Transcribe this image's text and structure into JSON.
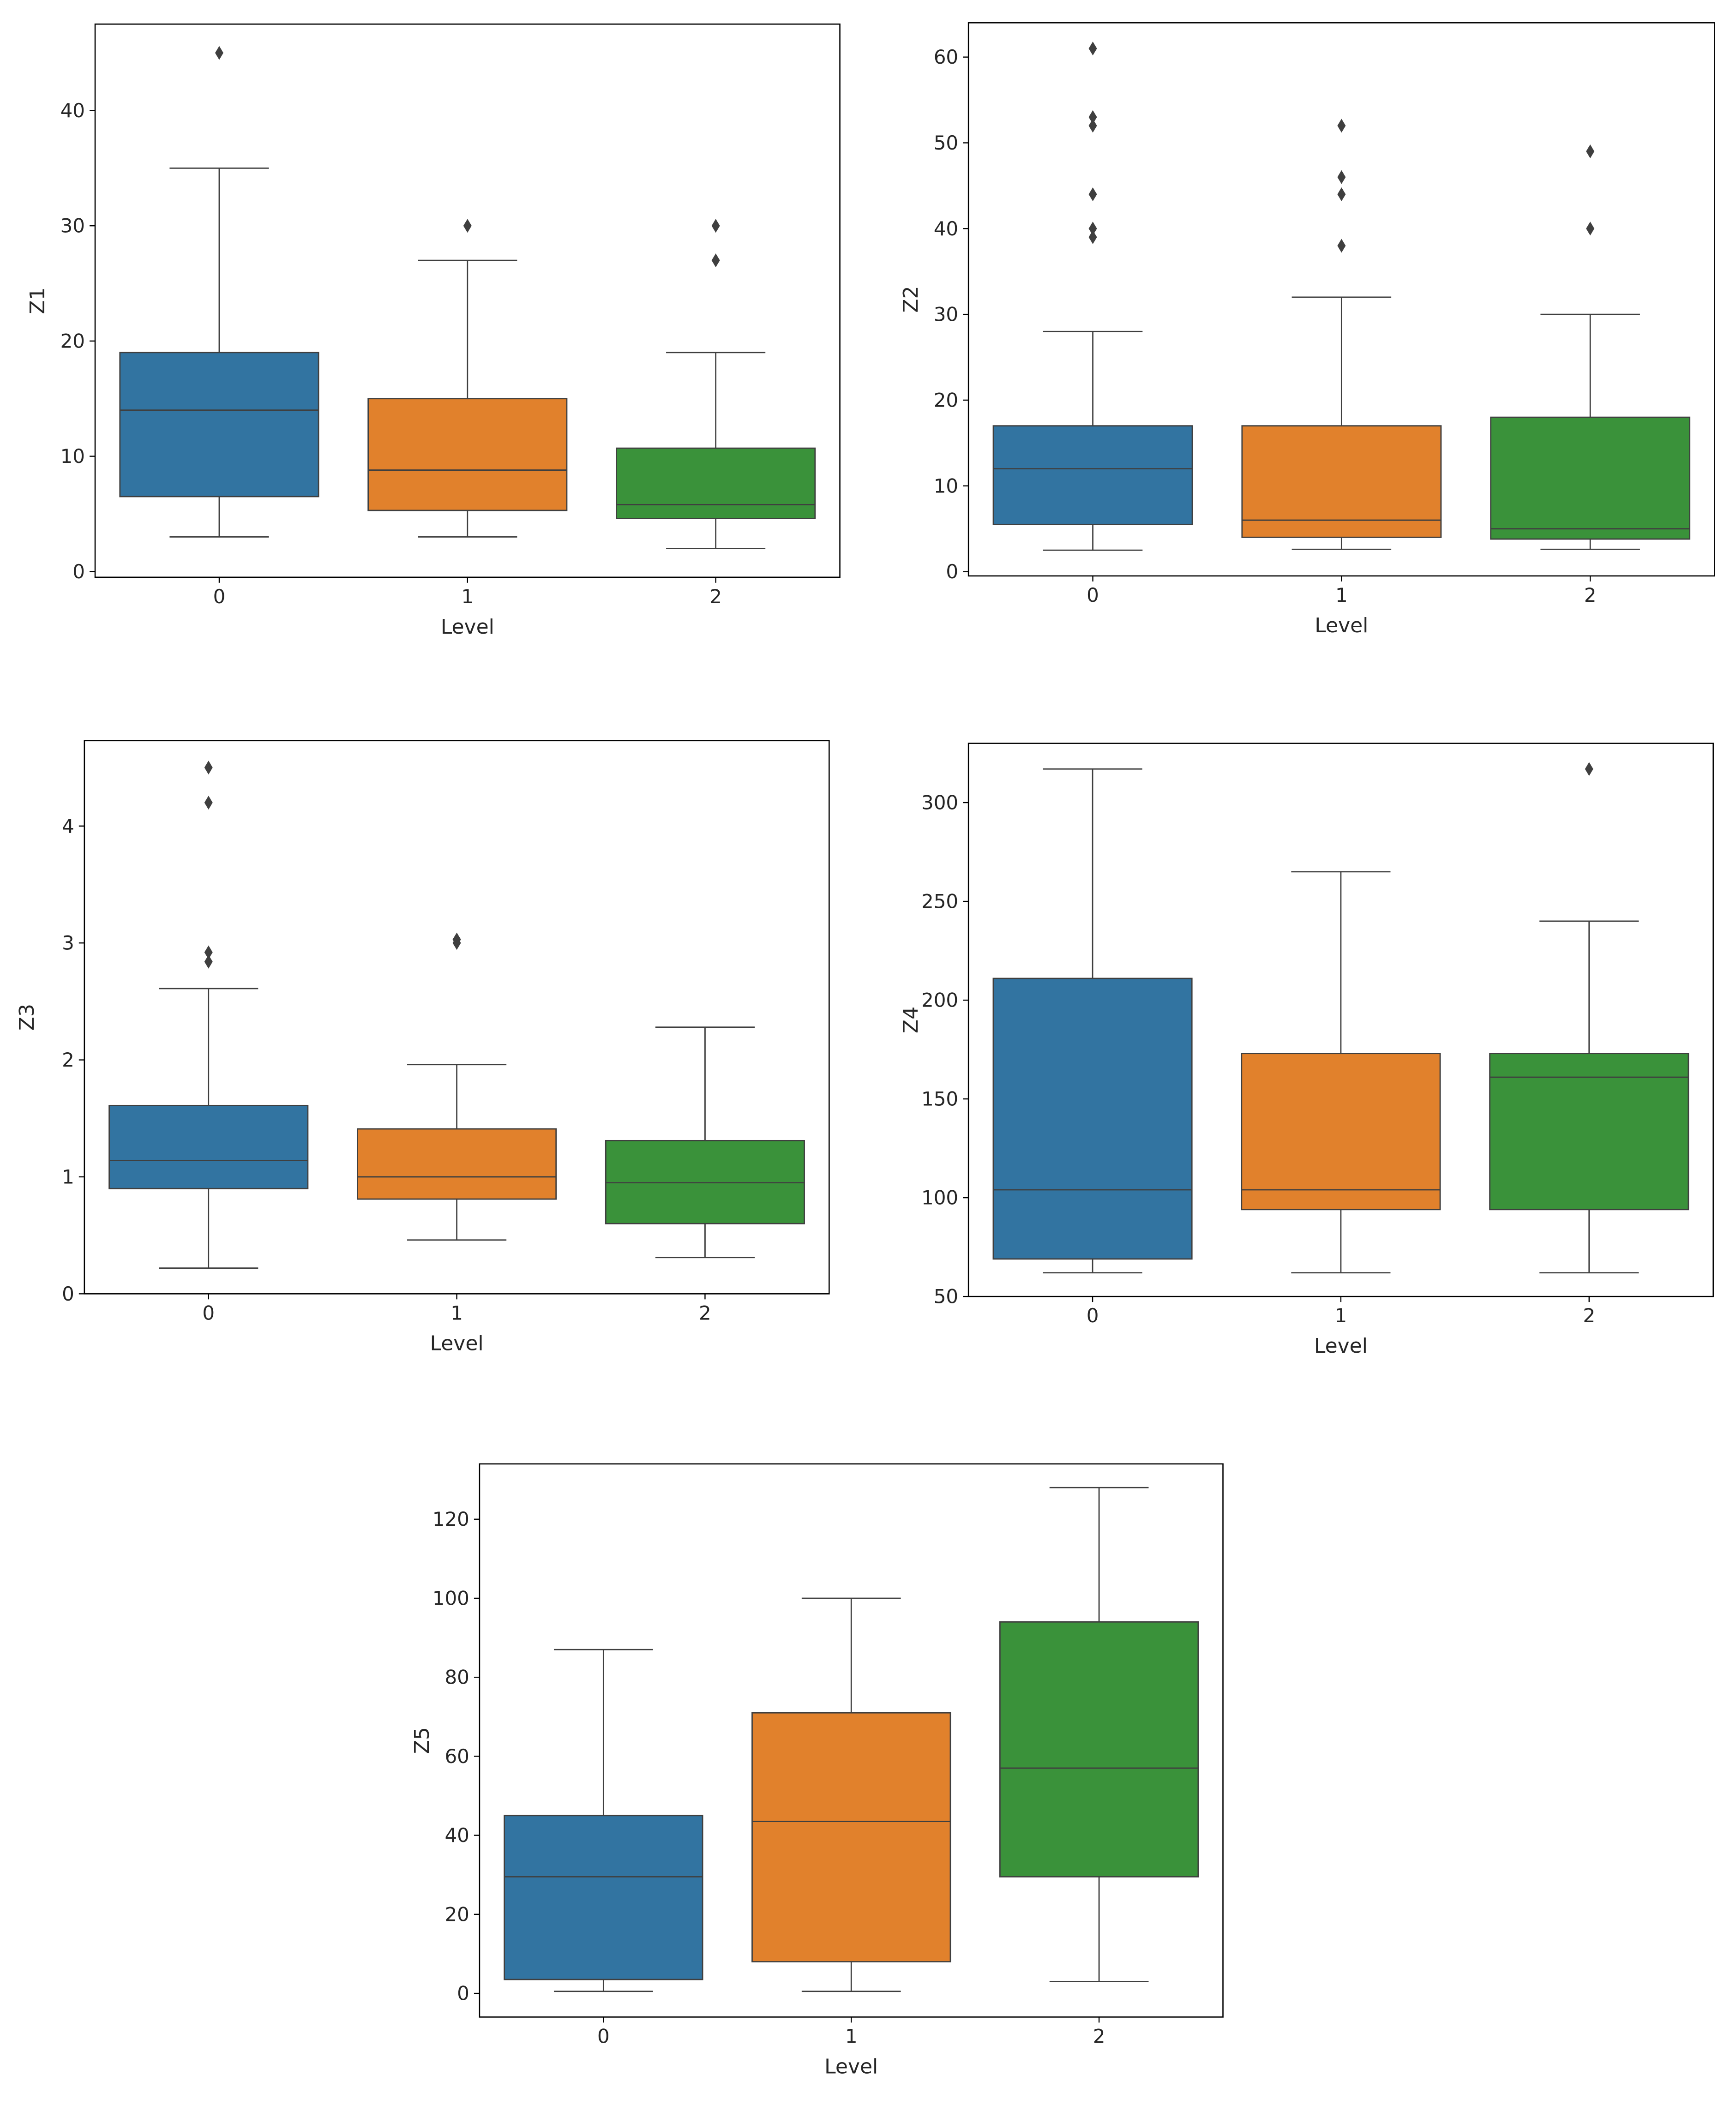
{
  "chart_data": [
    {
      "type": "box",
      "xlabel": "Level",
      "ylabel": "Z1",
      "categories": [
        "0",
        "1",
        "2"
      ],
      "ylim": [
        -0.5,
        47.5
      ],
      "yticks": [
        0,
        10,
        20,
        30,
        40
      ],
      "yticklabels": [
        "0",
        "10",
        "20",
        "30",
        "40"
      ],
      "boxes": [
        {
          "category": "0",
          "whisker_low": 3,
          "q1": 6.5,
          "median": 14,
          "q3": 19,
          "whisker_high": 35,
          "outliers": [
            45
          ]
        },
        {
          "category": "1",
          "whisker_low": 3,
          "q1": 5.3,
          "median": 8.8,
          "q3": 15,
          "whisker_high": 27,
          "outliers": [
            30
          ]
        },
        {
          "category": "2",
          "whisker_low": 2,
          "q1": 4.6,
          "median": 5.8,
          "q3": 10.7,
          "whisker_high": 19,
          "outliers": [
            27,
            30
          ]
        }
      ]
    },
    {
      "type": "box",
      "xlabel": "Level",
      "ylabel": "Z2",
      "categories": [
        "0",
        "1",
        "2"
      ],
      "ylim": [
        -0.5,
        64
      ],
      "yticks": [
        0,
        10,
        20,
        30,
        40,
        50,
        60
      ],
      "yticklabels": [
        "0",
        "10",
        "20",
        "30",
        "40",
        "50",
        "60"
      ],
      "boxes": [
        {
          "category": "0",
          "whisker_low": 2.5,
          "q1": 5.5,
          "median": 12,
          "q3": 17,
          "whisker_high": 28,
          "outliers": [
            39,
            40,
            44,
            52,
            53,
            61
          ]
        },
        {
          "category": "1",
          "whisker_low": 2.6,
          "q1": 4,
          "median": 6,
          "q3": 17,
          "whisker_high": 32,
          "outliers": [
            38,
            44,
            46,
            52
          ]
        },
        {
          "category": "2",
          "whisker_low": 2.6,
          "q1": 3.8,
          "median": 5,
          "q3": 18,
          "whisker_high": 30,
          "outliers": [
            40,
            49
          ]
        }
      ]
    },
    {
      "type": "box",
      "xlabel": "Level",
      "ylabel": "Z3",
      "categories": [
        "0",
        "1",
        "2"
      ],
      "ylim": [
        0,
        4.73
      ],
      "yticks": [
        0,
        1,
        2,
        3,
        4
      ],
      "yticklabels": [
        "0",
        "1",
        "2",
        "3",
        "4"
      ],
      "boxes": [
        {
          "category": "0",
          "whisker_low": 0.22,
          "q1": 0.9,
          "median": 1.14,
          "q3": 1.61,
          "whisker_high": 2.61,
          "outliers": [
            2.84,
            2.92,
            4.2,
            4.5
          ]
        },
        {
          "category": "1",
          "whisker_low": 0.46,
          "q1": 0.81,
          "median": 1.0,
          "q3": 1.41,
          "whisker_high": 1.96,
          "outliers": [
            3.0,
            3.03
          ]
        },
        {
          "category": "2",
          "whisker_low": 0.31,
          "q1": 0.6,
          "median": 0.95,
          "q3": 1.31,
          "whisker_high": 2.28,
          "outliers": []
        }
      ]
    },
    {
      "type": "box",
      "xlabel": "Level",
      "ylabel": "Z4",
      "categories": [
        "0",
        "1",
        "2"
      ],
      "ylim": [
        50,
        330
      ],
      "yticks": [
        50,
        100,
        150,
        200,
        250,
        300
      ],
      "yticklabels": [
        "50",
        "100",
        "150",
        "200",
        "250",
        "300"
      ],
      "boxes": [
        {
          "category": "0",
          "whisker_low": 62,
          "q1": 69,
          "median": 104,
          "q3": 211,
          "whisker_high": 317,
          "outliers": []
        },
        {
          "category": "1",
          "whisker_low": 62,
          "q1": 94,
          "median": 104,
          "q3": 173,
          "whisker_high": 265,
          "outliers": []
        },
        {
          "category": "2",
          "whisker_low": 62,
          "q1": 94,
          "median": 161,
          "q3": 173,
          "whisker_high": 240,
          "outliers": [
            317
          ]
        }
      ]
    },
    {
      "type": "box",
      "xlabel": "Level",
      "ylabel": "Z5",
      "categories": [
        "0",
        "1",
        "2"
      ],
      "ylim": [
        -6,
        134
      ],
      "yticks": [
        0,
        20,
        40,
        60,
        80,
        100,
        120
      ],
      "yticklabels": [
        "0",
        "20",
        "40",
        "60",
        "80",
        "100",
        "120"
      ],
      "boxes": [
        {
          "category": "0",
          "whisker_low": 0.5,
          "q1": 3.5,
          "median": 29.5,
          "q3": 45,
          "whisker_high": 87,
          "outliers": []
        },
        {
          "category": "1",
          "whisker_low": 0.5,
          "q1": 8,
          "median": 43.5,
          "q3": 71,
          "whisker_high": 100,
          "outliers": []
        },
        {
          "category": "2",
          "whisker_low": 3,
          "q1": 29.5,
          "median": 57,
          "q3": 94,
          "whisker_high": 128,
          "outliers": []
        }
      ]
    }
  ],
  "colors": {
    "level_0": "#3274a1",
    "level_1": "#e1812c",
    "level_2": "#3a923a",
    "line": "#3f3f3f",
    "axes": "#000000"
  }
}
